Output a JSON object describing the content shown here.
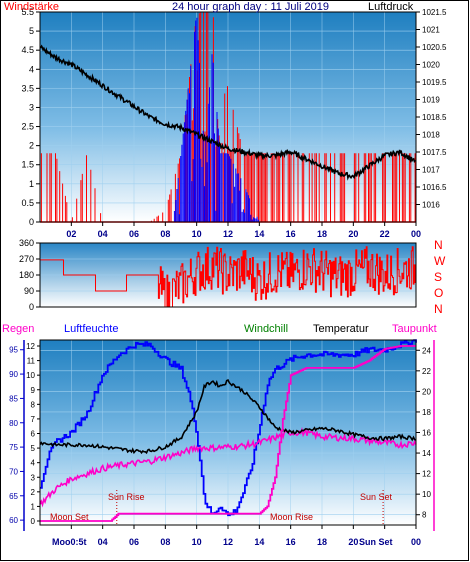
{
  "colors": {
    "wind": "#ff0000",
    "gust": "#0000ff",
    "pressure": "#000000",
    "direction": "#ff0000",
    "humidity": "#0000ff",
    "windchill": "#008000",
    "temperature": "#000000",
    "dewpoint": "#ff00c8",
    "rain": "#ff0000",
    "astro": "#c00000",
    "plotTop": "#1f7fc0",
    "plotBottom": "#ffffff"
  },
  "top": {
    "title": "24 hour graph day : 11 Juli 2019",
    "left_label": "Windstärke",
    "right_label": "Luftdruck"
  },
  "middle": {
    "compass": [
      "N",
      "W",
      "S",
      "O",
      "N"
    ]
  },
  "bottom": {
    "legend": {
      "rain": "Regen",
      "humidity": "Luftfeuchte",
      "windchill": "Windchill",
      "temperature": "Temperatur",
      "dewpoint": "Taupunkt"
    },
    "annotations": {
      "moonset": "Moon Set",
      "sunrise": "Sun Rise",
      "moonrise": "Moon Rise",
      "sunset": "Sun Set",
      "moonset_bottom": "Moo0:5t",
      "sunset_bottom": "Sun Set"
    }
  },
  "chart_data": [
    {
      "type": "line",
      "title": "24 hour graph day : 11 Juli 2019",
      "x_ticks": [
        "02",
        "04",
        "06",
        "08",
        "10",
        "12",
        "14",
        "16",
        "18",
        "20",
        "22",
        "00"
      ],
      "x_range_hours": [
        0,
        24
      ],
      "y_left": {
        "label": "Windstärke",
        "range": [
          0,
          5.5
        ],
        "ticks": [
          "0",
          "0.5",
          "1",
          "1.5",
          "2",
          "2.5",
          "3",
          "3.5",
          "4",
          "4.5",
          "5",
          "5.5"
        ]
      },
      "y_right": {
        "label": "Luftdruck",
        "range": [
          1015.5,
          1021.5
        ],
        "ticks": [
          "1016",
          "1016.5",
          "1017",
          "1017.5",
          "1018",
          "1018.5",
          "1019",
          "1019.5",
          "1020",
          "1020.5",
          "1021",
          "1021.5"
        ]
      },
      "series": [
        {
          "name": "Luftdruck",
          "axis": "right",
          "hours": [
            0,
            1,
            2,
            3,
            4,
            5,
            6,
            7,
            8,
            9,
            10,
            11,
            12,
            13,
            14,
            15,
            16,
            17,
            18,
            19,
            20,
            21,
            22,
            23,
            24
          ],
          "values": [
            1020.5,
            1020.2,
            1020.0,
            1019.7,
            1019.4,
            1019.1,
            1018.8,
            1018.5,
            1018.3,
            1018.2,
            1018.0,
            1017.8,
            1017.6,
            1017.5,
            1017.4,
            1017.4,
            1017.5,
            1017.3,
            1017.1,
            1016.9,
            1016.8,
            1017.1,
            1017.4,
            1017.5,
            1017.2
          ]
        },
        {
          "name": "Windstärke",
          "axis": "left",
          "hours": [
            0,
            1,
            2,
            3,
            4,
            5,
            6,
            7,
            8,
            9,
            10,
            11,
            12,
            13,
            14,
            15,
            16,
            17,
            18,
            19,
            20,
            21,
            22,
            23,
            24
          ],
          "values": [
            1.8,
            1.8,
            0,
            1.8,
            0,
            0,
            0,
            0,
            0.3,
            1.8,
            5.5,
            5.5,
            3.5,
            1.8,
            1.8,
            1.8,
            1.8,
            1.8,
            1.8,
            1.8,
            1.8,
            1.8,
            1.8,
            1.8,
            1.8
          ]
        },
        {
          "name": "Böen",
          "axis": "left",
          "hours": [
            8.5,
            9,
            10,
            10.5,
            11,
            11.5,
            12,
            13,
            14
          ],
          "values": [
            0,
            1.8,
            5.5,
            1.8,
            4.5,
            1.8,
            1.8,
            1.0,
            0
          ]
        }
      ]
    },
    {
      "type": "line",
      "title": "",
      "x_range_hours": [
        0,
        24
      ],
      "y_left": {
        "range": [
          0,
          360
        ],
        "ticks": [
          "0",
          "90",
          "180",
          "270",
          "360"
        ]
      },
      "y_right_labels": [
        "N",
        "W",
        "S",
        "O",
        "N"
      ],
      "series": [
        {
          "name": "Windrichtung",
          "hours": [
            0,
            1,
            1.5,
            3,
            3.5,
            5,
            5.5,
            7,
            8,
            9,
            10,
            11,
            12,
            13,
            14,
            15,
            16,
            17,
            18,
            19,
            20,
            21,
            22,
            23,
            24
          ],
          "values": [
            265,
            265,
            180,
            180,
            90,
            90,
            180,
            180,
            60,
            120,
            200,
            230,
            180,
            210,
            150,
            200,
            180,
            230,
            200,
            170,
            190,
            220,
            180,
            210,
            220
          ]
        }
      ]
    },
    {
      "type": "line",
      "title": "",
      "x_ticks": [
        "02",
        "04",
        "06",
        "08",
        "10",
        "12",
        "14",
        "16",
        "18",
        "20",
        "22",
        "00"
      ],
      "x_range_hours": [
        0,
        24
      ],
      "y_left_rain": {
        "label": "Regen",
        "range": [
          0,
          12
        ],
        "ticks": [
          "0",
          "1",
          "2",
          "3",
          "4",
          "5",
          "6",
          "7",
          "8",
          "9",
          "10",
          "11",
          "12"
        ]
      },
      "y_left_humidity": {
        "label": "Luftfeuchte",
        "range": [
          59,
          97
        ],
        "ticks": [
          "60",
          "65",
          "70",
          "75",
          "80",
          "85",
          "90",
          "95"
        ]
      },
      "y_right": {
        "label": "Temperatur",
        "range": [
          7,
          25
        ],
        "ticks": [
          "8",
          "10",
          "12",
          "14",
          "16",
          "18",
          "20",
          "22",
          "24"
        ]
      },
      "series": [
        {
          "name": "Luftfeuchte",
          "axis": "humidity",
          "hours": [
            0,
            0.5,
            1,
            2,
            3,
            4,
            5,
            6,
            7,
            8,
            9,
            9.5,
            10,
            10.5,
            11,
            11.5,
            12,
            12.5,
            13,
            13.5,
            14,
            14.5,
            15,
            16,
            17,
            18,
            19,
            20,
            21,
            22,
            23,
            24
          ],
          "values": [
            67,
            73,
            76,
            78,
            82,
            90,
            94,
            96,
            96,
            93,
            91,
            86,
            78,
            64,
            61,
            63,
            61,
            62,
            66,
            71,
            79,
            88,
            91,
            93,
            94,
            94,
            94,
            94,
            95,
            95,
            96,
            97
          ]
        },
        {
          "name": "Temperatur",
          "axis": "right",
          "hours": [
            0,
            1,
            2,
            3,
            4,
            5,
            6,
            7,
            8,
            9,
            10,
            10.5,
            11,
            11.5,
            12,
            12.5,
            13,
            14,
            15,
            16,
            17,
            18,
            19,
            20,
            21,
            22,
            23,
            24
          ],
          "values": [
            15.0,
            14.8,
            14.8,
            14.8,
            14.6,
            14.4,
            14.2,
            14.2,
            14.6,
            15.5,
            18.0,
            20.5,
            21.0,
            20.5,
            21.0,
            20.5,
            20.0,
            18.5,
            16.5,
            16.0,
            16.2,
            16.4,
            16.2,
            15.8,
            15.5,
            15.4,
            15.6,
            15.4
          ]
        },
        {
          "name": "Taupunkt",
          "axis": "right",
          "hours": [
            0,
            1,
            2,
            3,
            4,
            5,
            6,
            7,
            8,
            9,
            10,
            11,
            12,
            13,
            14,
            15,
            16,
            17,
            18,
            19,
            20,
            21,
            22,
            23,
            24
          ],
          "values": [
            9.0,
            10.5,
            11.5,
            12.0,
            12.5,
            12.8,
            13.0,
            13.2,
            13.6,
            14.0,
            14.5,
            14.5,
            14.6,
            14.7,
            15.0,
            15.5,
            16.0,
            16.0,
            15.6,
            15.5,
            15.4,
            15.2,
            15.0,
            14.8,
            15.0
          ]
        },
        {
          "name": "Regen",
          "axis": "rain",
          "hours": [
            0,
            1,
            2,
            4.5,
            5,
            6,
            8,
            10,
            12,
            14,
            14.5,
            15,
            15.5,
            16,
            17,
            18,
            19,
            20,
            21,
            22,
            23,
            24
          ],
          "values": [
            0,
            0,
            0,
            0,
            0.5,
            0.5,
            0.5,
            0.5,
            0.5,
            0.5,
            1.0,
            3.0,
            7.0,
            10.0,
            10.5,
            10.5,
            10.5,
            10.5,
            11.0,
            11.8,
            12.0,
            12.0
          ]
        }
      ]
    }
  ]
}
